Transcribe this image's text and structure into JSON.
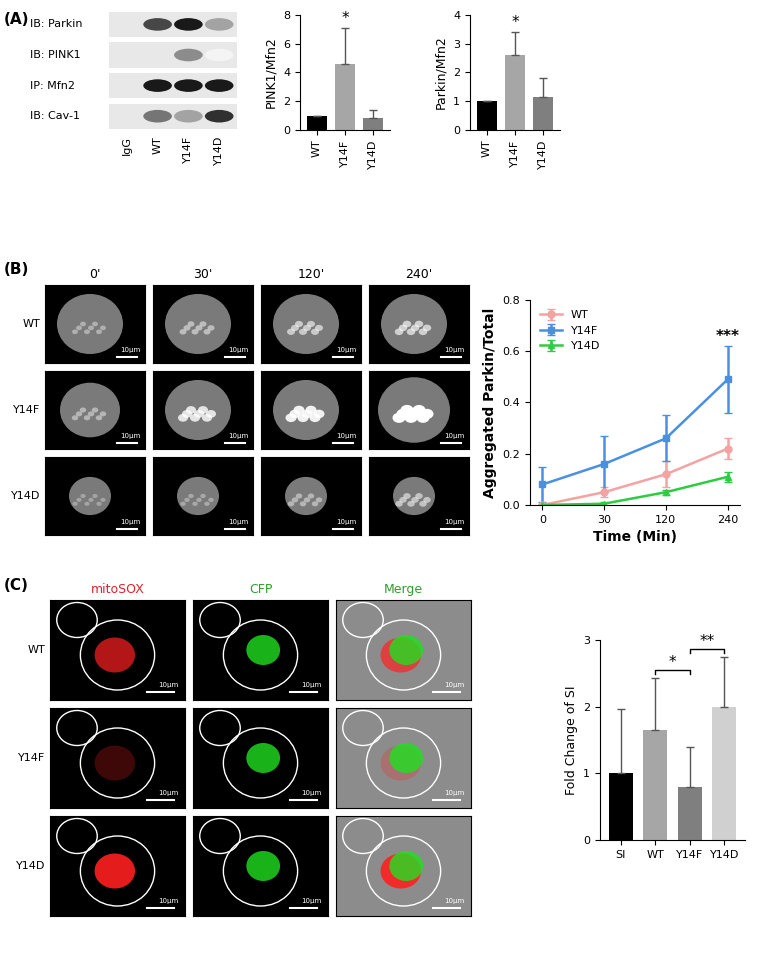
{
  "panel_labels": [
    "(A)",
    "(B)",
    "(C)"
  ],
  "blot": {
    "rows": [
      "IB: Parkin",
      "IB: PINK1",
      "IP: Mfn2",
      "IB: Cav-1"
    ],
    "lanes": [
      "IgG",
      "WT",
      "Y14F",
      "Y14D"
    ]
  },
  "timelapse": {
    "times": [
      "0'",
      "30'",
      "120'",
      "240'"
    ],
    "rows": [
      "WT",
      "Y14F",
      "Y14D"
    ],
    "scale_bar": "10μm"
  },
  "mitosox_images": {
    "columns": [
      "mitoSOX",
      "CFP",
      "Merge"
    ],
    "rows": [
      "WT",
      "Y14F",
      "Y14D"
    ],
    "scale_bar": "10μm"
  },
  "chart_data": [
    {
      "type": "bar",
      "ylabel": "PINK1/Mfn2",
      "categories": [
        "WT",
        "Y14F",
        "Y14D"
      ],
      "values": [
        1,
        4.6,
        0.8
      ],
      "errors": [
        0,
        2.5,
        0.6
      ],
      "colors": [
        "#000000",
        "#a6a6a6",
        "#7f7f7f"
      ],
      "ylim": [
        0,
        8
      ],
      "yticks": [
        0,
        2,
        4,
        6,
        8
      ],
      "annotations": [
        {
          "category": "Y14F",
          "text": "*"
        }
      ]
    },
    {
      "type": "bar",
      "ylabel": "Parkin/Mfn2",
      "categories": [
        "WT",
        "Y14F",
        "Y14D"
      ],
      "values": [
        1,
        2.6,
        1.15
      ],
      "errors": [
        0,
        0.8,
        0.65
      ],
      "colors": [
        "#000000",
        "#a6a6a6",
        "#7f7f7f"
      ],
      "ylim": [
        0,
        4
      ],
      "yticks": [
        0,
        1,
        2,
        3,
        4
      ],
      "annotations": [
        {
          "category": "Y14F",
          "text": "*"
        }
      ]
    },
    {
      "type": "line",
      "xlabel": "Time (Min)",
      "ylabel": "Aggregated Parkin/Total",
      "categories": [
        "0",
        "30",
        "120",
        "240"
      ],
      "ylim": [
        0,
        0.8
      ],
      "yticks": [
        {
          "value": 0,
          "label": "0.0"
        },
        {
          "value": 0.2,
          "label": "0.2"
        },
        {
          "value": 0.4,
          "label": "0.4"
        },
        {
          "value": 0.6,
          "label": "0.6"
        },
        {
          "value": 0.8,
          "label": "0.8"
        }
      ],
      "legend": "upper left",
      "series": [
        {
          "name": "WT",
          "color": "#f4a3a3",
          "marker": "circle",
          "values": [
            0.0,
            0.05,
            0.12,
            0.22
          ],
          "errors": [
            0.0,
            0.02,
            0.05,
            0.04
          ]
        },
        {
          "name": "Y14F",
          "color": "#4a90e2",
          "marker": "square",
          "values": [
            0.08,
            0.16,
            0.26,
            0.49
          ],
          "errors": [
            0.07,
            0.11,
            0.09,
            0.13
          ]
        },
        {
          "name": "Y14D",
          "color": "#2ecc40",
          "marker": "triangle",
          "values": [
            0.0,
            0.005,
            0.05,
            0.11
          ],
          "errors": [
            0.0,
            0.005,
            0.01,
            0.02
          ]
        }
      ],
      "annotations": [
        {
          "category": "240",
          "text": "***"
        }
      ]
    },
    {
      "type": "bar",
      "ylabel": "Fold Change of SI",
      "categories": [
        "SI",
        "WT",
        "Y14F",
        "Y14D"
      ],
      "values": [
        1.0,
        1.65,
        0.8,
        2.0
      ],
      "errors": [
        0.97,
        0.78,
        0.6,
        0.75
      ],
      "colors": [
        "#000000",
        "#a6a6a6",
        "#7f7f7f",
        "#d0d0d0"
      ],
      "ylim": [
        0,
        3
      ],
      "yticks": [
        0,
        1,
        2,
        3
      ],
      "comparisons": [
        {
          "from": "WT",
          "to": "Y14F",
          "text": "*"
        },
        {
          "from": "Y14F",
          "to": "Y14D",
          "text": "**"
        }
      ]
    }
  ]
}
